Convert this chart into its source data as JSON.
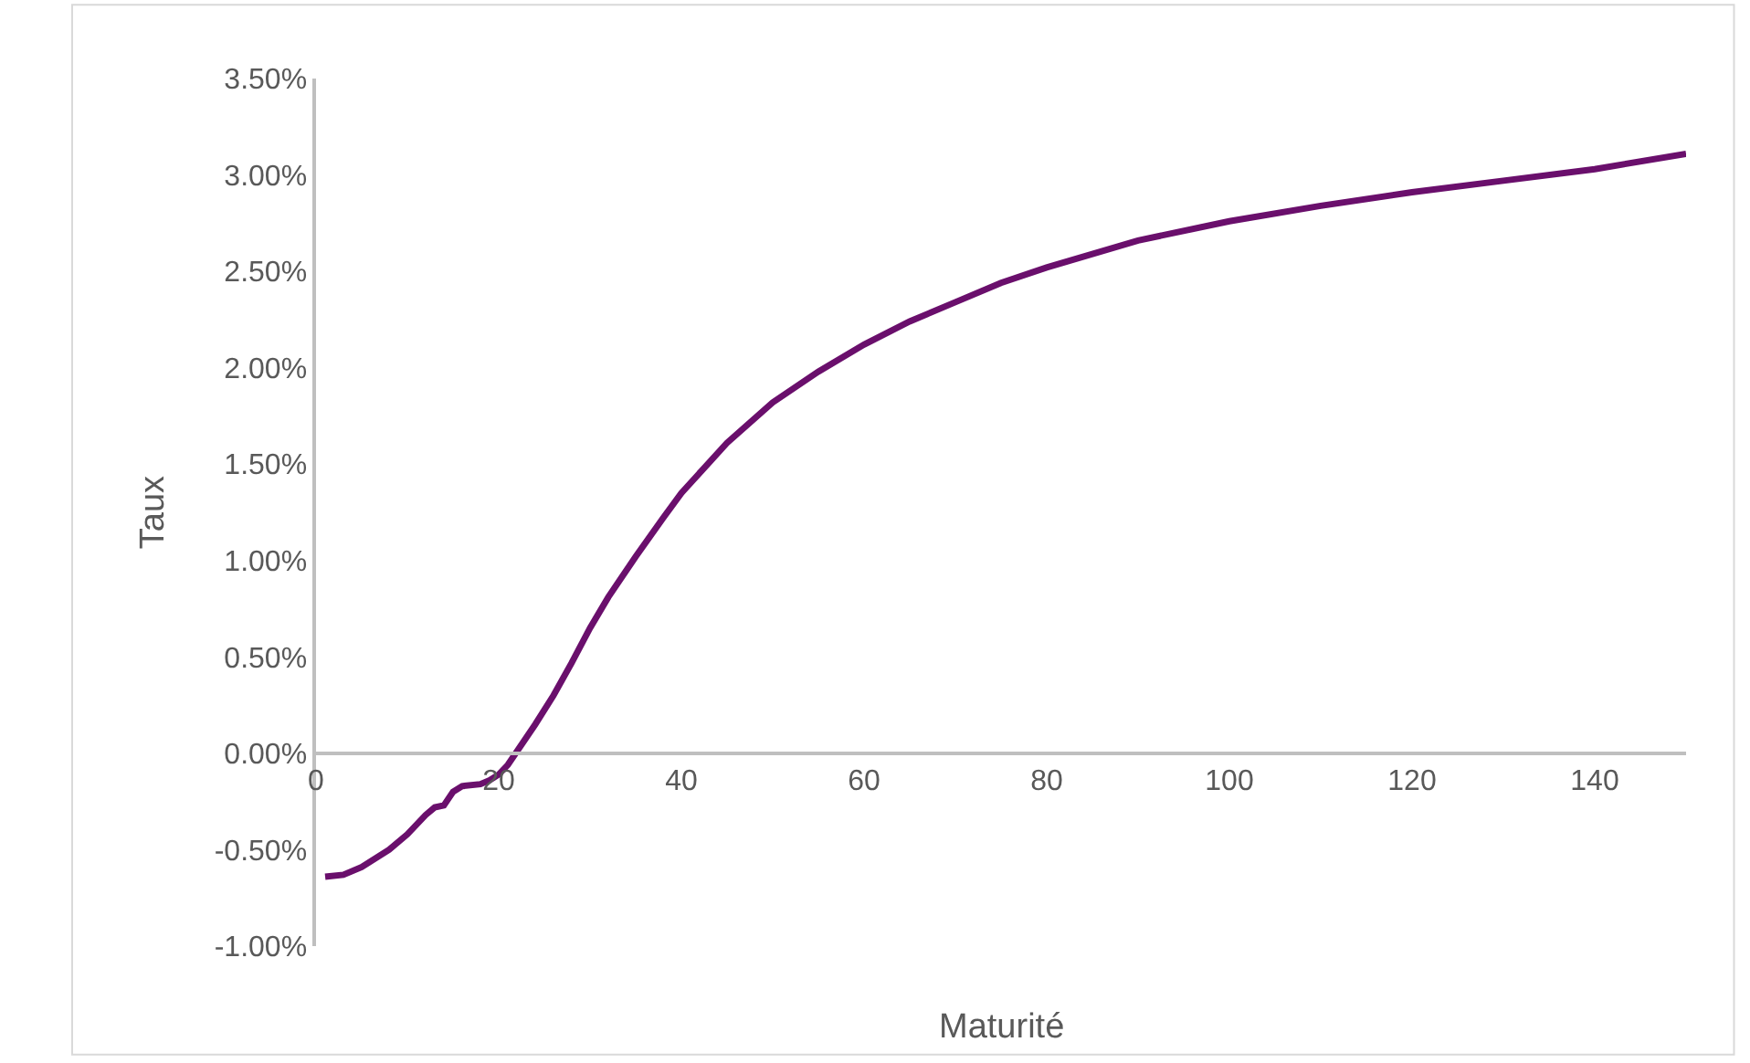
{
  "chart_data": {
    "type": "line",
    "xlabel": "Maturité",
    "ylabel": "Taux",
    "x": [
      1,
      3,
      5,
      8,
      10,
      12,
      13,
      14,
      15,
      16,
      18,
      19,
      20,
      21,
      22,
      24,
      26,
      28,
      30,
      32,
      35,
      38,
      40,
      45,
      50,
      55,
      60,
      65,
      70,
      75,
      80,
      90,
      100,
      110,
      120,
      130,
      140,
      150
    ],
    "series": [
      {
        "color": "#6a0f6c",
        "values": [
          -0.64,
          -0.63,
          -0.59,
          -0.5,
          -0.42,
          -0.32,
          -0.28,
          -0.27,
          -0.2,
          -0.17,
          -0.16,
          -0.14,
          -0.11,
          -0.06,
          0.01,
          0.15,
          0.3,
          0.47,
          0.65,
          0.81,
          1.02,
          1.22,
          1.35,
          1.61,
          1.82,
          1.98,
          2.12,
          2.24,
          2.34,
          2.44,
          2.52,
          2.66,
          2.76,
          2.84,
          2.91,
          2.97,
          3.03,
          3.11
        ]
      }
    ],
    "xlim": [
      0,
      150
    ],
    "xticks": [
      0,
      20,
      40,
      60,
      80,
      100,
      120,
      140
    ],
    "ylim": [
      -1,
      3.5
    ],
    "yticks": [
      {
        "value": -1,
        "label": "-1.00%"
      },
      {
        "value": -0.5,
        "label": "-0.50%"
      },
      {
        "value": 0,
        "label": "0.00%"
      },
      {
        "value": 0.5,
        "label": "0.50%"
      },
      {
        "value": 1,
        "label": "1.00%"
      },
      {
        "value": 1.5,
        "label": "1.50%"
      },
      {
        "value": 2,
        "label": "2.00%"
      },
      {
        "value": 2.5,
        "label": "2.50%"
      },
      {
        "value": 3,
        "label": "3.00%"
      },
      {
        "value": 3.5,
        "label": "3.50%"
      }
    ],
    "marker": "none",
    "line_style": "solid"
  }
}
